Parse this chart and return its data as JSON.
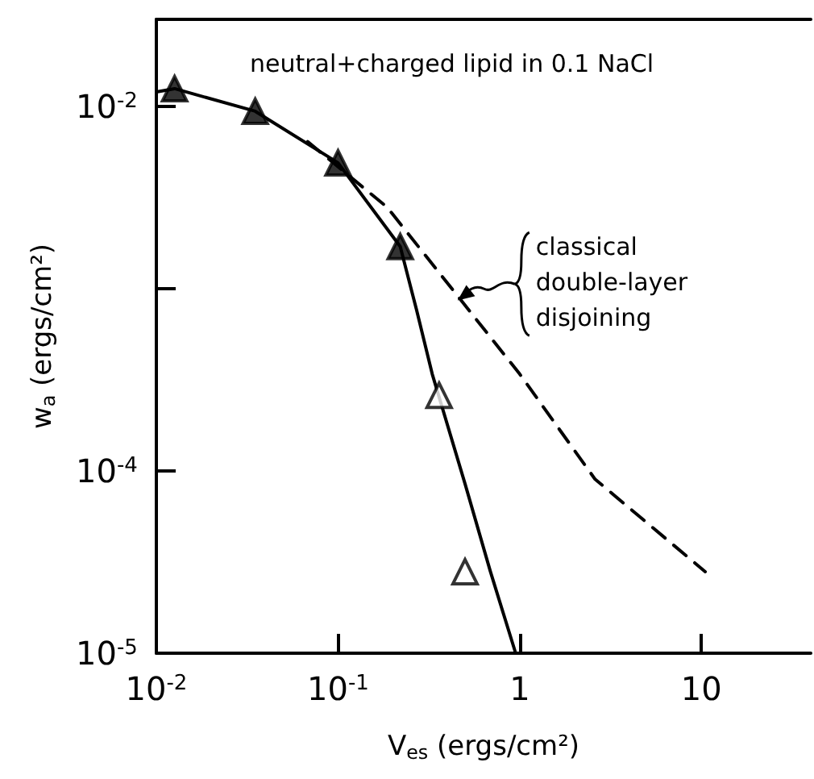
{
  "chart_data": {
    "type": "line",
    "xlabel": "V$_{es}$ (ergs/cm²)",
    "ylabel": "w$_{a}$ (ergs/cm²)",
    "annotations": [
      "neutral+charged lipid in 0.1 NaCl",
      {
        "text": "classical double-layer disjoining",
        "x": 0.46,
        "y": 0.0009
      }
    ],
    "log": "xy",
    "xlim": [
      0.01,
      40
    ],
    "xticks": [
      {
        "value": 0.01,
        "label": "10$^{-2}$"
      },
      {
        "value": 0.1,
        "label": "10$^{-1}$"
      },
      1,
      10
    ],
    "ylim": [
      1e-05,
      0.03
    ],
    "yticks": [
      {
        "value": 0.01,
        "label": "10$^{-2}$"
      },
      {
        "value": 0.001,
        "label": null
      },
      {
        "value": 0.0001,
        "label": "10$^{-4}$"
      },
      {
        "value": 1e-05,
        "label": "10$^{-5}$"
      }
    ],
    "grid": false,
    "series": [
      {
        "line_style": "solid",
        "marker": "none",
        "color": "#000000",
        "x": [
          0.01,
          0.0126,
          0.035,
          0.1,
          0.22,
          0.27,
          0.33,
          0.5,
          0.69,
          0.95
        ],
        "values": [
          0.012,
          0.0125,
          0.0094,
          0.0049,
          0.0017,
          0.00077,
          0.00034,
          8.5e-05,
          2.8e-05,
          1e-05
        ]
      },
      {
        "type": "line",
        "line_style": "dashed",
        "marker": "none",
        "color": "#000000",
        "x": [
          0.068,
          0.186,
          0.46,
          1.0,
          2.6,
          10.5
        ],
        "values": [
          0.0064,
          0.0028,
          0.0009,
          0.00034,
          9e-05,
          2.8e-05
        ]
      },
      {
        "type": "scatter",
        "marker": "triangle",
        "color": "#000000",
        "colors": [
          "#000000",
          "#000000",
          "#000000",
          "#000000",
          "#ffffff",
          "#ffffff"
        ],
        "x": [
          0.0126,
          0.035,
          0.1,
          0.22,
          0.36,
          0.5
        ],
        "values": [
          0.0125,
          0.0094,
          0.0049,
          0.0017,
          0.00026,
          2.8e-05
        ]
      }
    ]
  }
}
